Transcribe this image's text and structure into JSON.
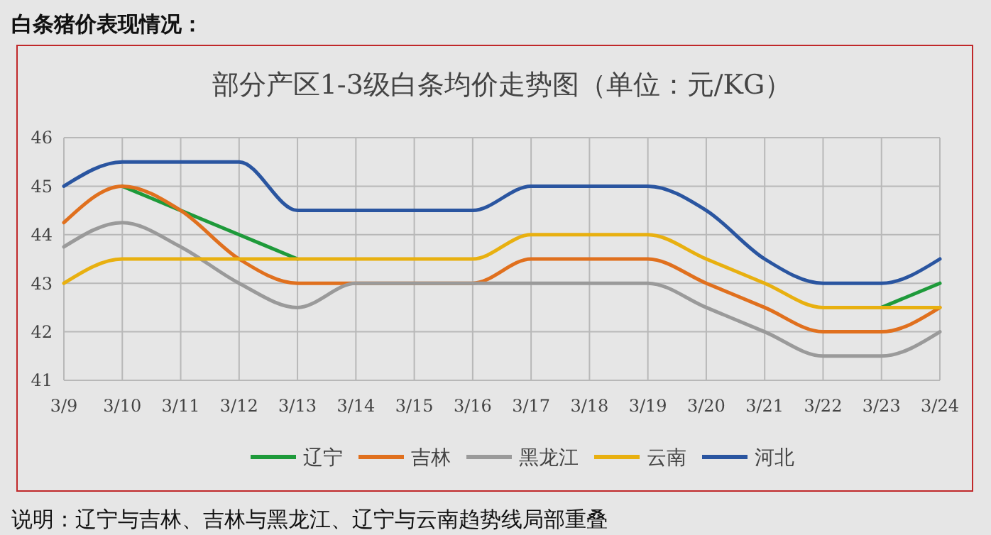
{
  "chart_data": {
    "type": "line",
    "title": "部分产区1-3级白条均价走势图（单位：元/KG）",
    "annotations": [
      "白条猪价表现情况：",
      "说明：辽宁与吉林、吉林与黑龙江、辽宁与云南趋势线局部重叠"
    ],
    "categories": [
      "3/9",
      "3/10",
      "3/11",
      "3/12",
      "3/13",
      "3/14",
      "3/15",
      "3/16",
      "3/17",
      "3/18",
      "3/19",
      "3/20",
      "3/21",
      "3/22",
      "3/23",
      "3/24"
    ],
    "series": [
      {
        "name": "辽宁",
        "color": "#1e9a3a",
        "values": [
          null,
          45,
          44.5,
          44,
          43.5,
          null,
          null,
          null,
          null,
          null,
          null,
          null,
          null,
          null,
          42.5,
          43
        ]
      },
      {
        "name": "吉林",
        "color": "#e0701e",
        "values": [
          44.25,
          45,
          44.5,
          43.5,
          43,
          43,
          43,
          43,
          43.5,
          43.5,
          43.5,
          43,
          42.5,
          42,
          42,
          42.5
        ]
      },
      {
        "name": "黑龙江",
        "color": "#9a9a9a",
        "values": [
          43.75,
          44.25,
          43.75,
          43,
          42.5,
          43,
          43,
          43,
          43,
          43,
          43,
          42.5,
          42,
          41.5,
          41.5,
          42
        ]
      },
      {
        "name": "云南",
        "color": "#e8b010",
        "values": [
          43,
          43.5,
          43.5,
          43.5,
          43.5,
          43.5,
          43.5,
          43.5,
          44,
          44,
          44,
          43.5,
          43,
          42.5,
          42.5,
          42.5
        ]
      },
      {
        "name": "河北",
        "color": "#2a55a0",
        "values": [
          45,
          45.5,
          45.5,
          45.5,
          44.5,
          44.5,
          44.5,
          44.5,
          45,
          45,
          45,
          44.5,
          43.5,
          43,
          43,
          43.5
        ]
      }
    ],
    "ylim": [
      41,
      46
    ],
    "yticks": [
      41,
      42,
      43,
      44,
      45,
      46
    ],
    "grid": true,
    "legend": "bottom",
    "marker": "none",
    "line_style": "solid"
  }
}
